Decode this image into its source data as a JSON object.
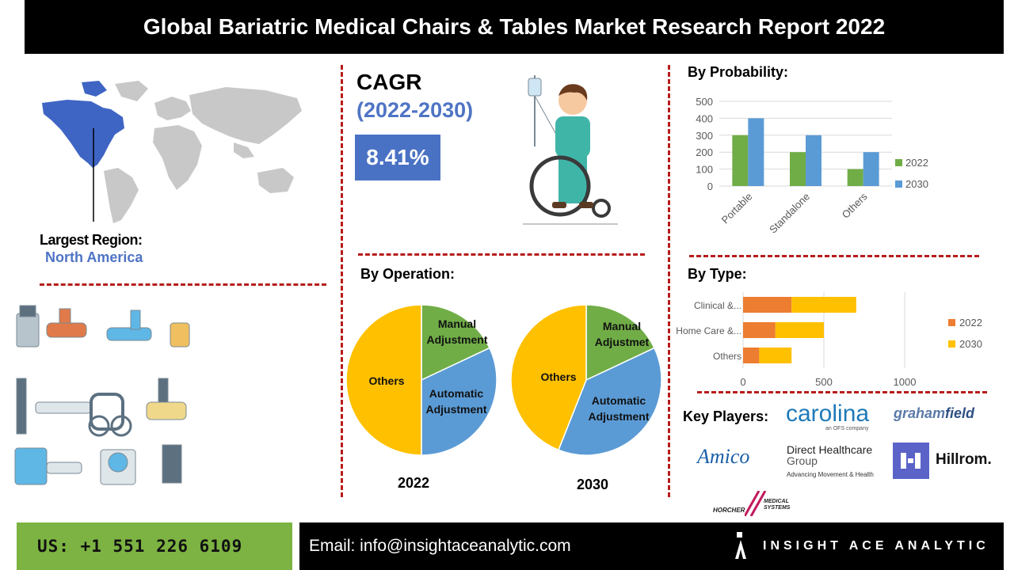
{
  "header": {
    "title": "Global Bariatric Medical Chairs & Tables Market Research Report 2022"
  },
  "region": {
    "label": "Largest Region:",
    "value": "North America"
  },
  "cagr": {
    "title": "CAGR",
    "years": "(2022-2030)",
    "value": "8.41%"
  },
  "sections": {
    "probability": "By Probability:",
    "operation": "By Operation:",
    "type": "By Type:",
    "players": "Key Players:"
  },
  "colors": {
    "green": "#70ad47",
    "blue": "#5b9bd5",
    "orange": "#ed7d31",
    "yellow": "#ffc000",
    "accent_blue": "#4a72c4",
    "dash_red": "#b71c1c"
  },
  "chart_data": [
    {
      "type": "bar",
      "title": "By Probability:",
      "categories": [
        "Portable",
        "Standalone",
        "Others"
      ],
      "series": [
        {
          "name": "2022",
          "values": [
            300,
            200,
            100
          ]
        },
        {
          "name": "2030",
          "values": [
            400,
            300,
            200
          ]
        }
      ],
      "ylim": [
        0,
        500
      ],
      "yticks": [
        0,
        100,
        200,
        300,
        400,
        500
      ],
      "grid": true,
      "legend": "right"
    },
    {
      "type": "pie",
      "title": "2022",
      "labels": [
        "Manual Adjustment",
        "Automatic Adjustment",
        "Others"
      ],
      "values": [
        18,
        32,
        50
      ]
    },
    {
      "type": "pie",
      "title": "2030",
      "labels": [
        "Manual Adjustmet",
        "Automatic Adjustment",
        "Others"
      ],
      "values": [
        18,
        38,
        44
      ]
    },
    {
      "type": "bar",
      "orientation": "horizontal",
      "stacked": true,
      "title": "By Type:",
      "categories": [
        "Clinical &...",
        "Home Care &...",
        "Others"
      ],
      "series": [
        {
          "name": "2022",
          "values": [
            300,
            200,
            100
          ]
        },
        {
          "name": "2030",
          "values": [
            400,
            300,
            200
          ]
        }
      ],
      "xlim": [
        0,
        1000
      ],
      "xticks": [
        0,
        500,
        1000
      ],
      "grid": true,
      "legend": "right"
    }
  ],
  "players": {
    "carolina": "carolina",
    "carolina_sub": "an OFS company",
    "graham_1": "graham",
    "graham_2": "field",
    "amico": "Amico",
    "dh_1": "Direct Healthcare",
    "dh_2": "Group",
    "dh_3": "Advancing Movement & Health",
    "hillrom": "Hillrom.",
    "horcher_1": "HORCHER",
    "horcher_2": "MEDICAL SYSTEMS"
  },
  "footer": {
    "phone": "US: +1 551 226 6109",
    "email": "Email: info@insightaceanalytic.com",
    "brand": "INSIGHT ACE ANALYTIC"
  }
}
